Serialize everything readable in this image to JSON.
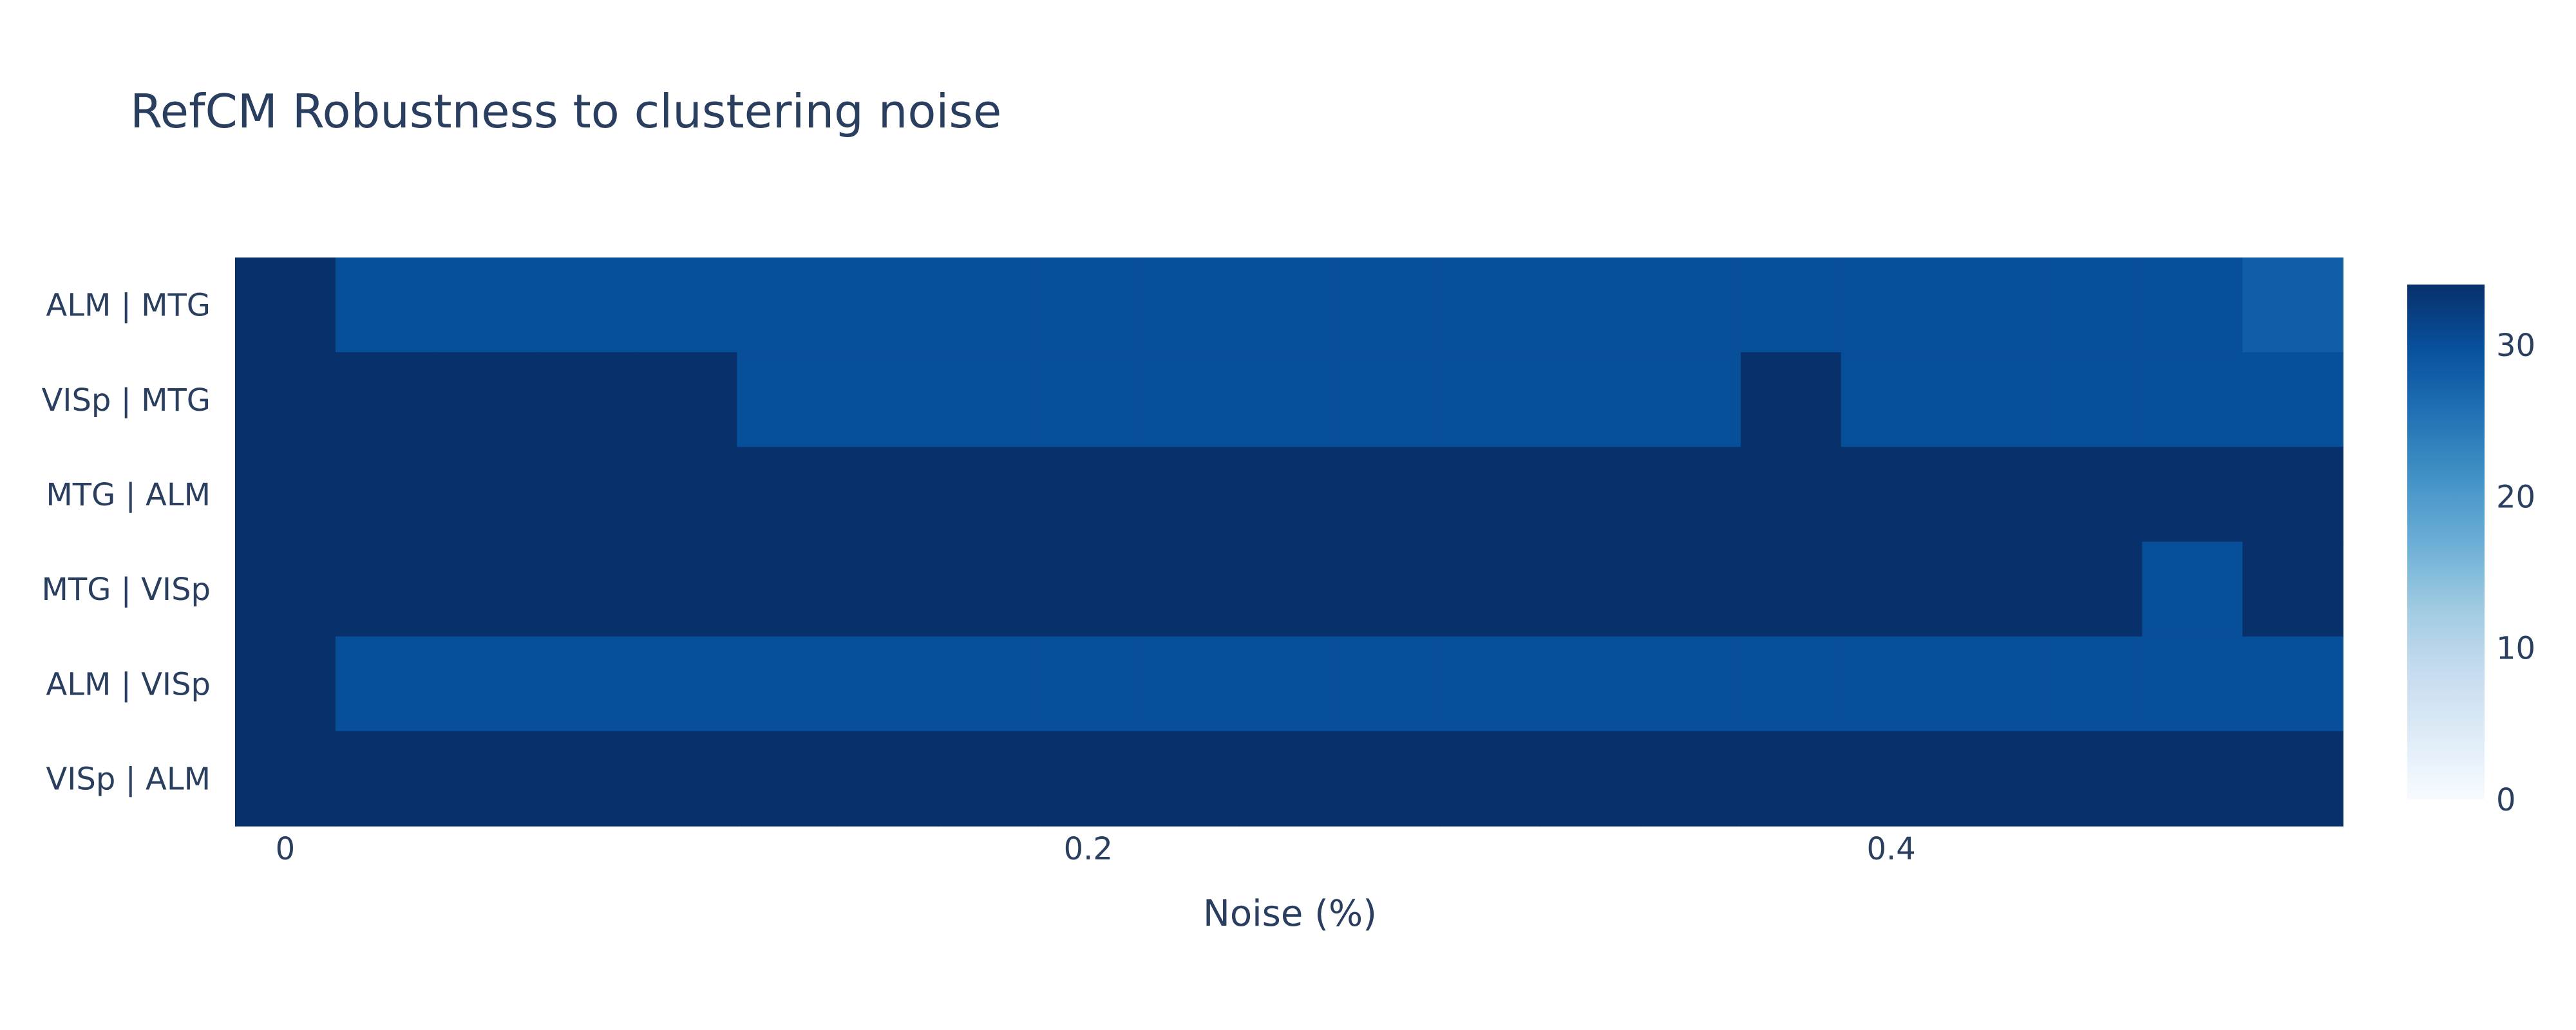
{
  "chart_data": {
    "type": "heatmap",
    "title": "RefCM Robustness to clustering noise",
    "xlabel": "Noise (%)",
    "ylabel": "",
    "x": [
      0,
      0.025,
      0.05,
      0.075,
      0.1,
      0.125,
      0.15,
      0.175,
      0.2,
      0.225,
      0.25,
      0.275,
      0.3,
      0.325,
      0.35,
      0.375,
      0.4,
      0.425,
      0.45,
      0.475,
      0.5
    ],
    "x_tick_values": [
      0,
      0.2,
      0.4
    ],
    "x_tick_labels": [
      "0",
      "0.2",
      "0.4"
    ],
    "y_categories": [
      "ALM | MTG",
      "VISp | MTG",
      "MTG | ALM",
      "MTG | VISp",
      "ALM | VISp",
      "VISp | ALM"
    ],
    "z": [
      [
        34,
        30,
        30,
        30,
        30,
        30,
        30,
        30,
        30,
        30,
        30,
        30,
        30,
        30,
        30,
        30,
        30,
        30,
        30,
        30,
        28
      ],
      [
        34,
        34,
        34,
        34,
        34,
        30,
        30,
        30,
        30,
        30,
        30,
        30,
        30,
        30,
        30,
        34,
        30,
        30,
        30,
        30,
        30
      ],
      [
        34,
        34,
        34,
        34,
        34,
        34,
        34,
        34,
        34,
        34,
        34,
        34,
        34,
        34,
        34,
        34,
        34,
        34,
        34,
        34,
        34
      ],
      [
        34,
        34,
        34,
        34,
        34,
        34,
        34,
        34,
        34,
        34,
        34,
        34,
        34,
        34,
        34,
        34,
        34,
        34,
        34,
        30,
        34
      ],
      [
        34,
        30,
        30,
        30,
        30,
        30,
        30,
        30,
        30,
        30,
        30,
        30,
        30,
        30,
        30,
        30,
        30,
        30,
        30,
        30,
        30
      ],
      [
        34,
        34,
        34,
        34,
        34,
        34,
        34,
        34,
        34,
        34,
        34,
        34,
        34,
        34,
        34,
        34,
        34,
        34,
        34,
        34,
        34
      ]
    ],
    "colorscale": "Blues",
    "colorbar": {
      "range": [
        0,
        34
      ],
      "tick_values": [
        0,
        10,
        20,
        30
      ],
      "tick_labels": [
        "0",
        "10",
        "20",
        "30"
      ]
    },
    "grid": false,
    "legend": "colorbar-right"
  }
}
